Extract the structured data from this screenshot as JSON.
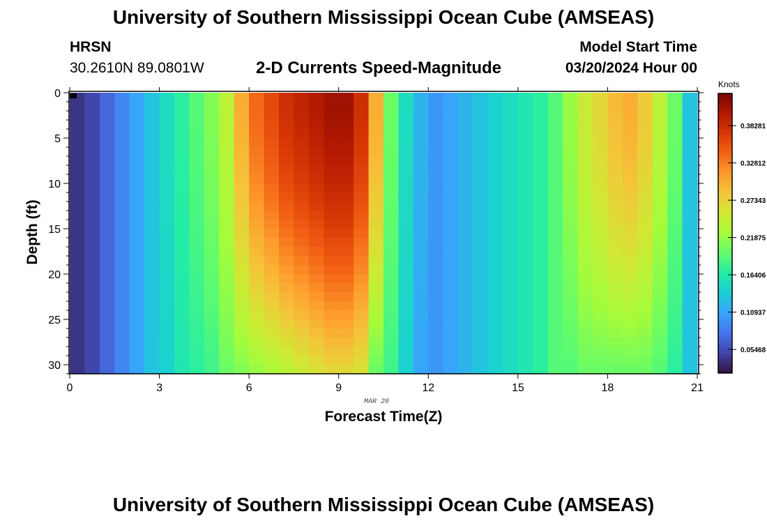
{
  "header": {
    "top_title": "University of Southern Mississippi Ocean Cube (AMSEAS)",
    "station": "HRSN",
    "coords": "30.2610N  89.0801W",
    "chart_title": "2-D Currents Speed-Magnitude",
    "model_label": "Model Start Time",
    "model_date": "03/20/2024 Hour 00",
    "bottom_title": "University of Southern Mississippi Ocean Cube (AMSEAS)"
  },
  "colors": {
    "scale": [
      "#30123b",
      "#4145ab",
      "#4675ed",
      "#39a2fc",
      "#1bcfd4",
      "#24eca6",
      "#61fc6c",
      "#a4fc3b",
      "#d1e834",
      "#f3c63a",
      "#fe9b2d",
      "#f36315",
      "#d93806",
      "#b11901",
      "#7a0402"
    ]
  },
  "chart_data": {
    "type": "heatmap",
    "title": "2-D Currents Speed-Magnitude",
    "xlabel": "Forecast Time(Z)",
    "ylabel": "Depth (ft)",
    "date_label": "MAR 20",
    "x_ticks": [
      0,
      3,
      6,
      9,
      12,
      15,
      18,
      21
    ],
    "y_ticks": [
      0,
      5,
      10,
      15,
      20,
      25,
      30
    ],
    "xlim": [
      0,
      21
    ],
    "ylim": [
      31,
      0
    ],
    "colorbar": {
      "label": "Knots",
      "ticks": [
        "0.05468",
        "0.10937",
        "0.16406",
        "0.21875",
        "0.27343",
        "0.32812",
        "0.38281"
      ],
      "tick_values": [
        0.05468,
        0.10937,
        0.16406,
        0.21875,
        0.27343,
        0.32812,
        0.38281
      ],
      "range": [
        0.02,
        0.43
      ]
    },
    "x": [
      0.25,
      0.75,
      1.25,
      1.75,
      2.25,
      2.75,
      3.25,
      3.75,
      4.25,
      4.75,
      5.25,
      5.75,
      6.25,
      6.75,
      7.25,
      7.75,
      8.25,
      8.75,
      9.25,
      9.75,
      10.25,
      10.75,
      11.25,
      11.75,
      12.25,
      12.75,
      13.25,
      13.75,
      14.25,
      14.75,
      15.25,
      15.75,
      16.25,
      16.75,
      17.25,
      17.75,
      18.25,
      18.75,
      19.25,
      19.75,
      20.25,
      20.75
    ],
    "surface_speed": [
      0.04,
      0.05,
      0.07,
      0.09,
      0.11,
      0.13,
      0.15,
      0.17,
      0.19,
      0.21,
      0.24,
      0.3,
      0.34,
      0.36,
      0.38,
      0.39,
      0.4,
      0.41,
      0.41,
      0.38,
      0.3,
      0.2,
      0.15,
      0.12,
      0.1,
      0.11,
      0.12,
      0.13,
      0.14,
      0.15,
      0.16,
      0.17,
      0.19,
      0.22,
      0.25,
      0.27,
      0.29,
      0.3,
      0.28,
      0.24,
      0.2,
      0.13
    ],
    "bottom_speed": [
      0.04,
      0.05,
      0.07,
      0.09,
      0.11,
      0.13,
      0.14,
      0.16,
      0.17,
      0.18,
      0.2,
      0.21,
      0.22,
      0.23,
      0.24,
      0.25,
      0.26,
      0.27,
      0.27,
      0.26,
      0.2,
      0.18,
      0.14,
      0.11,
      0.1,
      0.11,
      0.12,
      0.13,
      0.14,
      0.15,
      0.16,
      0.17,
      0.19,
      0.19,
      0.2,
      0.2,
      0.2,
      0.2,
      0.2,
      0.19,
      0.17,
      0.13
    ]
  }
}
